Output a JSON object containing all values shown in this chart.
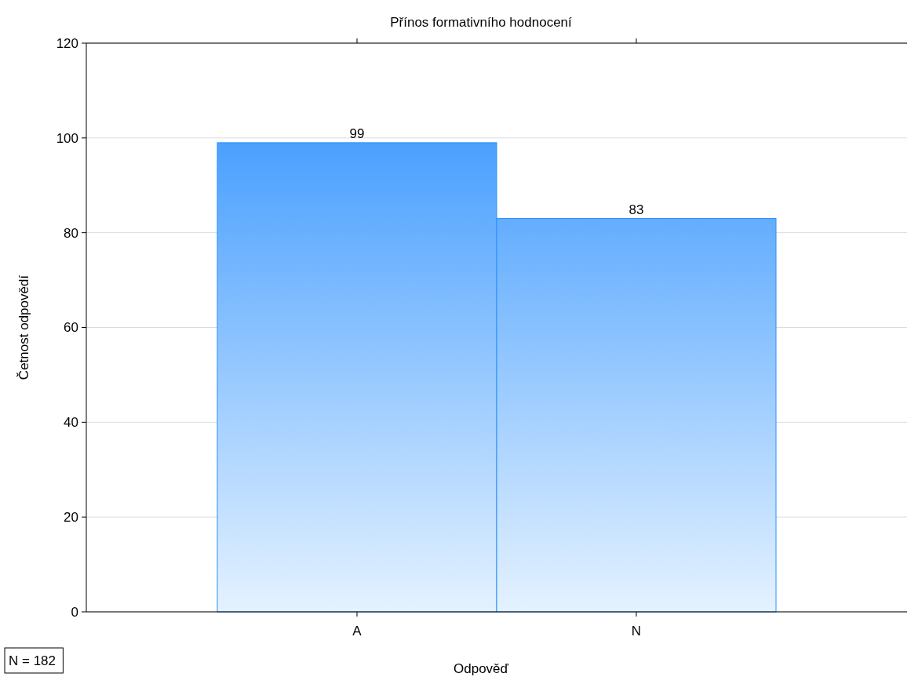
{
  "chart_data": {
    "type": "bar",
    "title": "Přínos formativního hodnocení",
    "xlabel": "Odpověď",
    "ylabel": "Četnost odpovědí",
    "categories": [
      "A",
      "N"
    ],
    "values": [
      99,
      83
    ],
    "color": "#2a8ffe",
    "ylim": [
      0,
      120
    ],
    "yticks": [
      0,
      20,
      40,
      60,
      80,
      100,
      120
    ],
    "grid": "y",
    "data_labels": true,
    "annotations": [
      "N = 182"
    ]
  }
}
